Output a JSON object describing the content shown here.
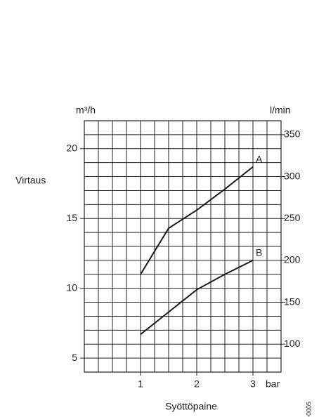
{
  "chart_data": {
    "type": "line",
    "ylabel": "Virtaus",
    "y_unit": "m³/h",
    "y2_unit": "l/min",
    "xlabel": "Syöttöpaine",
    "x_unit": "bar",
    "figure_id": "4103-0005",
    "x": [
      1,
      1.5,
      2,
      2.5,
      3
    ],
    "series": [
      {
        "name": "A",
        "color": "#1a1a1a",
        "values": [
          11.0,
          14.3,
          15.6,
          17.1,
          18.7
        ]
      },
      {
        "name": "B",
        "color": "#1a1a1a",
        "values": [
          6.7,
          8.3,
          9.9,
          11.0,
          12.0
        ]
      }
    ],
    "xlim": [
      0,
      3.5
    ],
    "xticks": [
      1,
      2,
      3
    ],
    "ylim": [
      4,
      22
    ],
    "yticks": [
      5,
      10,
      15,
      20
    ],
    "y2lim": [
      66.67,
      366.67
    ],
    "y2ticks": [
      100,
      150,
      200,
      250,
      300,
      350
    ],
    "x_grid": [
      0.25,
      0.5,
      0.75,
      1,
      1.25,
      1.5,
      1.75,
      2,
      2.25,
      2.5,
      2.75,
      3,
      3.25
    ],
    "y_grid": [
      5,
      6,
      7,
      8,
      9,
      10,
      11,
      12,
      13,
      14,
      15,
      16,
      17,
      18,
      19,
      20,
      21
    ],
    "grid": true
  }
}
